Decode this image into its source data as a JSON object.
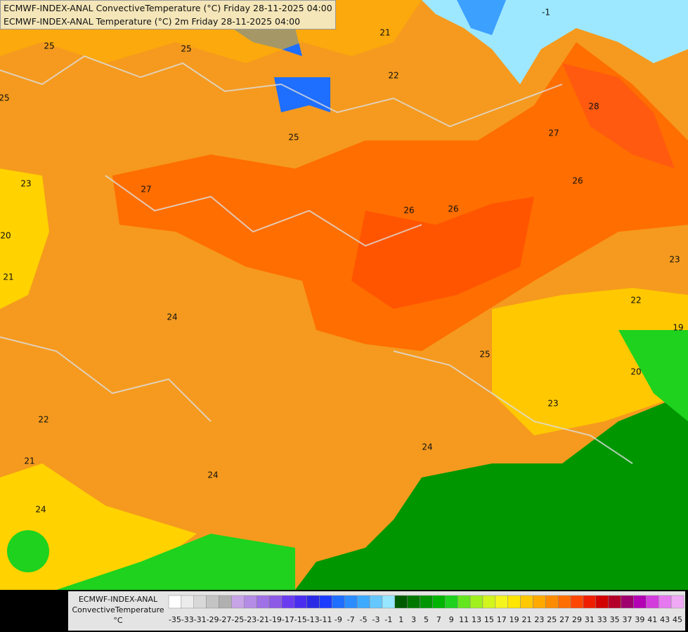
{
  "header": {
    "line1": "ECMWF-INDEX-ANAL ConvectiveTemperature (°C) Friday 28-11-2025 04:00",
    "line2": "ECMWF-INDEX-ANAL Temperature (°C) 2m Friday 28-11-2025 04:00"
  },
  "contour_labels": [
    "25",
    "25",
    "25",
    "21",
    "22",
    "25",
    "27",
    "23",
    "20",
    "21",
    "26",
    "26",
    "28",
    "27",
    "26",
    "23",
    "22",
    "19",
    "24",
    "25",
    "20",
    "23",
    "22",
    "21",
    "24",
    "24",
    "24",
    "-1"
  ],
  "legend": {
    "title": [
      "ECMWF-INDEX-ANAL",
      "ConvectiveTemperature",
      "°C"
    ],
    "ticks": [
      -35,
      -33,
      -31,
      -29,
      -27,
      -25,
      -23,
      -21,
      -19,
      -17,
      -15,
      -13,
      -11,
      -9,
      -7,
      -5,
      -3,
      -1,
      1,
      3,
      5,
      7,
      9,
      11,
      13,
      15,
      17,
      19,
      21,
      23,
      25,
      27,
      29,
      31,
      33,
      35,
      37,
      39,
      41,
      43,
      45
    ],
    "colors": [
      "#ffffff",
      "#ececec",
      "#d8d8d8",
      "#c4c4c4",
      "#b0b0b0",
      "#c6a4e6",
      "#b48ce6",
      "#a070e6",
      "#8c5ae6",
      "#6a3cf0",
      "#4a2ef0",
      "#2a2ae6",
      "#1c3cff",
      "#1e6eff",
      "#2a8cff",
      "#3caaff",
      "#64c8ff",
      "#96e6ff",
      "#005a00",
      "#007800",
      "#009600",
      "#00b400",
      "#1ed21e",
      "#64e61e",
      "#a0f01e",
      "#d2f51e",
      "#f5f51e",
      "#ffe600",
      "#ffc800",
      "#ffaa00",
      "#ff8c00",
      "#ff6e00",
      "#ff4600",
      "#f01e00",
      "#d20000",
      "#b40028",
      "#a0006e",
      "#b400b4",
      "#d23cdc",
      "#e678f0",
      "#f0aaf5"
    ]
  }
}
